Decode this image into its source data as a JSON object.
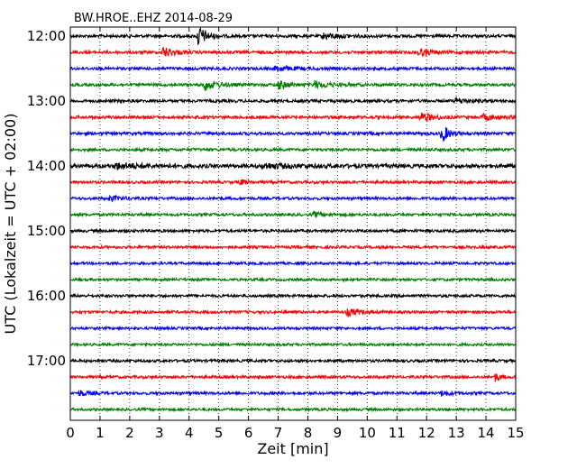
{
  "chart_data": {
    "type": "line",
    "title": "BW.HROE..EHZ 2014-08-29",
    "xlabel": "Zeit  [min]",
    "ylabel": "UTC (Lokalzeit = UTC + 02:00)",
    "xlim": [
      0,
      15
    ],
    "x_ticks": [
      "0",
      "1",
      "2",
      "3",
      "4",
      "5",
      "6",
      "7",
      "8",
      "9",
      "10",
      "11",
      "12",
      "13",
      "14",
      "15"
    ],
    "y_ticks": [
      "12:00",
      "13:00",
      "14:00",
      "15:00",
      "16:00",
      "17:00"
    ],
    "grid": "vertical dotted",
    "trace_colors": [
      "#000000",
      "#ff0000",
      "#0000ff",
      "#008000"
    ],
    "series": [
      {
        "start": "12:00",
        "amp": 1.6,
        "events": [
          {
            "t": 4.3,
            "a": 12,
            "w": 0.25
          },
          {
            "t": 8.5,
            "a": 3,
            "w": 0.6
          }
        ]
      },
      {
        "start": "12:15",
        "amp": 1.6,
        "events": [
          {
            "t": 3.1,
            "a": 6,
            "w": 0.35
          },
          {
            "t": 11.7,
            "a": 4,
            "w": 0.4
          }
        ]
      },
      {
        "start": "12:30",
        "amp": 1.6,
        "events": [
          {
            "t": 6.9,
            "a": 3,
            "w": 0.5
          }
        ]
      },
      {
        "start": "12:45",
        "amp": 1.6,
        "events": [
          {
            "t": 4.5,
            "a": 6,
            "w": 0.4
          },
          {
            "t": 7.0,
            "a": 5,
            "w": 0.3
          },
          {
            "t": 8.2,
            "a": 4,
            "w": 0.5
          }
        ]
      },
      {
        "start": "13:00",
        "amp": 1.6,
        "events": [
          {
            "t": 13.0,
            "a": 3,
            "w": 0.4
          }
        ]
      },
      {
        "start": "13:15",
        "amp": 1.6,
        "events": [
          {
            "t": 11.8,
            "a": 5,
            "w": 0.4
          },
          {
            "t": 13.9,
            "a": 3,
            "w": 0.5
          }
        ]
      },
      {
        "start": "13:30",
        "amp": 1.6,
        "events": [
          {
            "t": 12.5,
            "a": 12,
            "w": 0.2
          }
        ]
      },
      {
        "start": "13:45",
        "amp": 1.6,
        "events": []
      },
      {
        "start": "14:00",
        "amp": 2.2,
        "events": [
          {
            "t": 1.5,
            "a": 3,
            "w": 0.8
          },
          {
            "t": 6.5,
            "a": 2.5,
            "w": 0.8
          }
        ]
      },
      {
        "start": "14:15",
        "amp": 1.5,
        "events": [
          {
            "t": 5.7,
            "a": 3,
            "w": 0.2
          }
        ]
      },
      {
        "start": "14:30",
        "amp": 1.5,
        "events": [
          {
            "t": 1.3,
            "a": 2.5,
            "w": 0.4
          }
        ]
      },
      {
        "start": "14:45",
        "amp": 1.5,
        "events": [
          {
            "t": 8.2,
            "a": 2.5,
            "w": 0.3
          }
        ]
      },
      {
        "start": "15:00",
        "amp": 1.5,
        "events": []
      },
      {
        "start": "15:15",
        "amp": 1.5,
        "events": []
      },
      {
        "start": "15:30",
        "amp": 1.4,
        "events": []
      },
      {
        "start": "15:45",
        "amp": 1.4,
        "events": []
      },
      {
        "start": "16:00",
        "amp": 1.5,
        "events": []
      },
      {
        "start": "16:15",
        "amp": 1.5,
        "events": [
          {
            "t": 9.3,
            "a": 4,
            "w": 0.4
          }
        ]
      },
      {
        "start": "16:30",
        "amp": 1.4,
        "events": []
      },
      {
        "start": "16:45",
        "amp": 1.4,
        "events": []
      },
      {
        "start": "17:00",
        "amp": 1.5,
        "events": []
      },
      {
        "start": "17:15",
        "amp": 1.5,
        "events": [
          {
            "t": 14.3,
            "a": 5,
            "w": 0.15
          }
        ]
      },
      {
        "start": "17:30",
        "amp": 1.5,
        "events": [
          {
            "t": 0.3,
            "a": 3,
            "w": 0.3
          },
          {
            "t": 12.5,
            "a": 2.5,
            "w": 0.3
          }
        ]
      },
      {
        "start": "17:45",
        "amp": 1.4,
        "events": []
      }
    ]
  }
}
